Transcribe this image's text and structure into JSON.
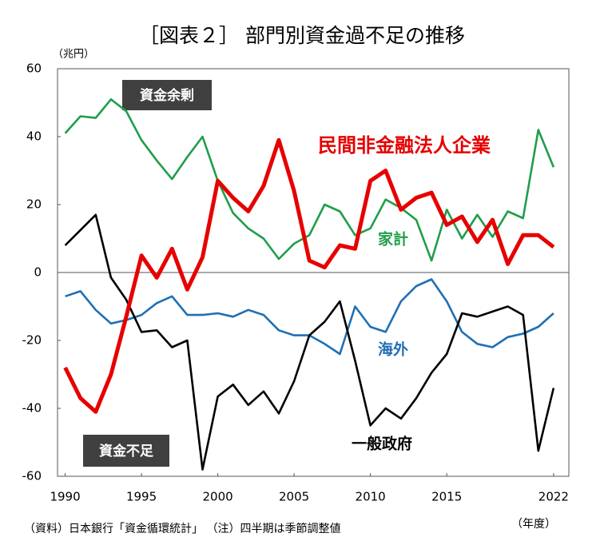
{
  "chart_data": {
    "type": "line",
    "title": "［図表２］ 部門別資金過不足の推移",
    "y_unit": "（兆円）",
    "x_unit": "（年度）",
    "note": "（資料）日本銀行「資金循環統計」 （注）四半期は季節調整値",
    "annotations": [
      "資金余剰",
      "資金不足"
    ],
    "x": [
      1990,
      1991,
      1992,
      1993,
      1994,
      1995,
      1996,
      1997,
      1998,
      1999,
      2000,
      2001,
      2002,
      2003,
      2004,
      2005,
      2006,
      2007,
      2008,
      2009,
      2010,
      2011,
      2012,
      2013,
      2014,
      2015,
      2016,
      2017,
      2018,
      2019,
      2020,
      2021,
      2022
    ],
    "xlim": [
      1989.5,
      2023
    ],
    "xticks": [
      1990,
      1995,
      2000,
      2005,
      2010,
      2015,
      2022
    ],
    "ylim": [
      -60,
      60
    ],
    "yticks": [
      -60,
      -40,
      -20,
      0,
      20,
      40,
      60
    ],
    "series": [
      {
        "name": "家計",
        "color": "#1f9e4a",
        "values": [
          41,
          46,
          45.5,
          51,
          47.5,
          39,
          33,
          27.5,
          34,
          40,
          27,
          17.5,
          13,
          10,
          4,
          8.5,
          11,
          20,
          18,
          11,
          13,
          21.5,
          19,
          15.5,
          3.5,
          18.5,
          10,
          17,
          10.5,
          18,
          16,
          42,
          31
        ]
      },
      {
        "name": "海外",
        "color": "#1f6fb5",
        "values": [
          -7,
          -5.5,
          -11,
          -15,
          -14,
          -12.5,
          -9,
          -7,
          -12.5,
          -12.5,
          -12,
          -13,
          -11,
          -12.5,
          -17,
          -18.5,
          -18.5,
          -21,
          -24,
          -10,
          -16,
          -17.5,
          -8.5,
          -4,
          -2,
          -8.5,
          -17.5,
          -21,
          -22,
          -19,
          -18,
          -16,
          -12
        ]
      },
      {
        "name": "一般政府",
        "color": "#000000",
        "values": [
          8,
          12.5,
          17,
          -1.5,
          -8,
          -17.5,
          -17,
          -22,
          -20,
          -58,
          -36.5,
          -33,
          -39,
          -35,
          -41.5,
          -32,
          -18.5,
          -14.5,
          -8.5,
          -26,
          -45,
          -40,
          -43,
          -37,
          -29.5,
          -24,
          -12,
          -13,
          -11.5,
          -10,
          -12.5,
          -52.5,
          -34
        ]
      },
      {
        "name": "民間非金融法人企業",
        "color": "#e60000",
        "values": [
          -28,
          -37,
          -41,
          -30,
          -13,
          5,
          -1.5,
          7,
          -5,
          4.5,
          27,
          22,
          18,
          25.5,
          39,
          24,
          3.5,
          1.5,
          8,
          7,
          27,
          30,
          18.5,
          22,
          23.5,
          14,
          16.5,
          9,
          15.5,
          2.5,
          11,
          11,
          7.5
        ]
      }
    ]
  }
}
